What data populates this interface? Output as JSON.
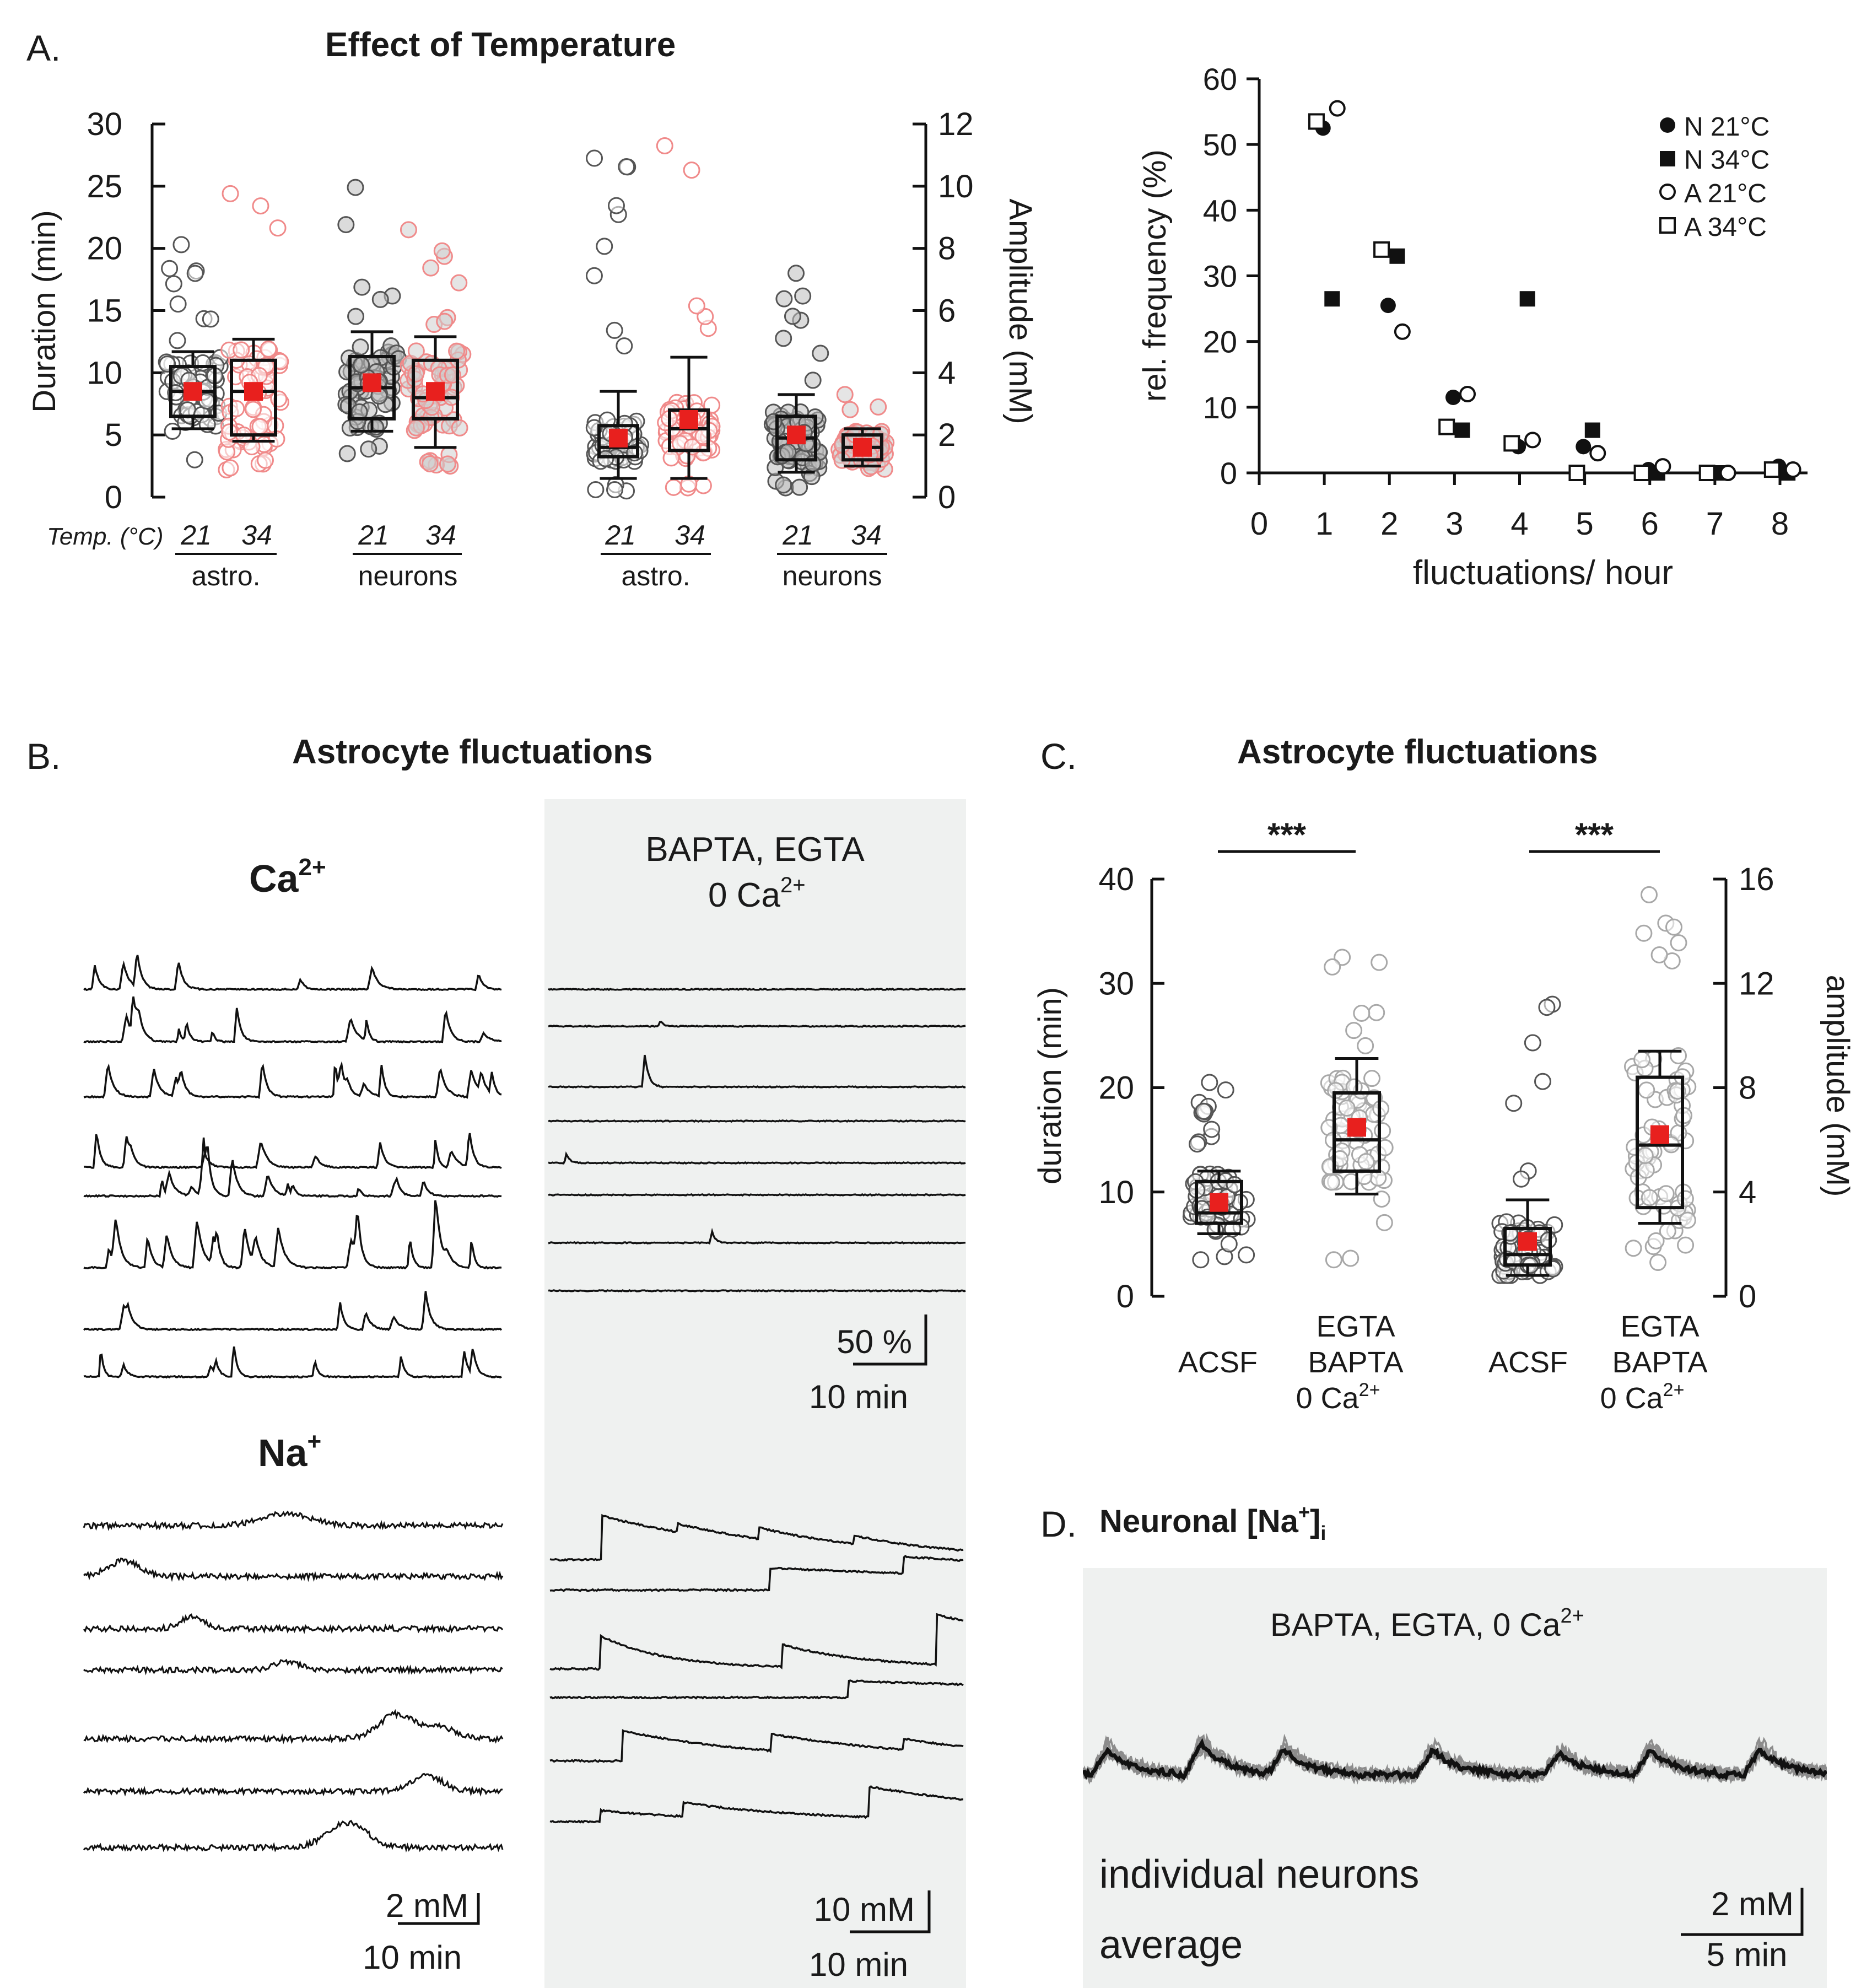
{
  "panels": {
    "A": {
      "letter": "A.",
      "title": "Effect of Temperature",
      "duration_label": "Duration (min)",
      "amplitude_label": "Amplitude (mM)",
      "temp_label": "Temp. (°C)",
      "group_labels": [
        "astro.",
        "neurons",
        "astro.",
        "neurons"
      ],
      "temps": [
        "21",
        "34",
        "21",
        "34",
        "21",
        "34",
        "21",
        "34"
      ],
      "duration_ticks": [
        "0",
        "5",
        "10",
        "15",
        "20",
        "25",
        "30"
      ],
      "amplitude_ticks": [
        "0",
        "2",
        "4",
        "6",
        "8",
        "10",
        "12"
      ]
    },
    "A2": {
      "ylabel": "rel. frequency (%)",
      "xlabel": "fluctuations/ hour",
      "yticks": [
        "0",
        "10",
        "20",
        "30",
        "40",
        "50",
        "60"
      ],
      "xticks": [
        "0",
        "1",
        "2",
        "3",
        "4",
        "5",
        "6",
        "7",
        "8"
      ],
      "legend": [
        "N 21°C",
        "N 34°C",
        "A 21°C",
        "A 34°C"
      ]
    },
    "B": {
      "letter": "B.",
      "title": "Astrocyte fluctuations",
      "ca_label": "Ca",
      "ca_sup": "2+",
      "na_label": "Na",
      "na_sup": "+",
      "bapta_line1": "BAPTA, EGTA",
      "bapta_line2": "0 Ca",
      "bapta_sup": "2+",
      "scale_ca_y": "50 %",
      "scale_ca_x": "10 min",
      "scale_na_left_y": "2 mM",
      "scale_na_left_x": "10 min",
      "scale_na_right_y": "10 mM",
      "scale_na_right_x": "10 min"
    },
    "C": {
      "letter": "C.",
      "title": "Astrocyte fluctuations",
      "ylabel_left": "duration (min)",
      "ylabel_right": "amplitude (mM)",
      "yticks_left": [
        "0",
        "10",
        "20",
        "30",
        "40"
      ],
      "yticks_right": [
        "0",
        "4",
        "8",
        "12",
        "16"
      ],
      "sig": [
        "***",
        "***"
      ],
      "acsf": "ACSF",
      "egta_line1": "EGTA",
      "egta_line2": "BAPTA",
      "egta_line3": "0 Ca",
      "egta_sup": "2+"
    },
    "D": {
      "letter": "D.",
      "title": "Neuronal [Na",
      "title_sup": "+",
      "title_end": "]",
      "title_sub": "i",
      "condition": "BAPTA, EGTA, 0 Ca",
      "condition_sup": "2+",
      "legend_individual": "individual neurons",
      "legend_average": "average",
      "scale_y": "2 mM",
      "scale_x": "5 min"
    }
  },
  "colors": {
    "red": "#e8201e",
    "pink": "#f08a8a",
    "grey": "#9a9a9a",
    "shade": "#eff1f0",
    "trace": "#111111",
    "individual": "#8c8c8c"
  },
  "chart_data": [
    {
      "type": "box",
      "title": "Effect of Temperature - Duration",
      "ylabel": "Duration (min)",
      "ylim": [
        0,
        30
      ],
      "groups": [
        {
          "name": "astro. 21",
          "whisker_low": 5.5,
          "q1": 6.5,
          "median": 8.5,
          "q3": 10.5,
          "whisker_high": 11.7,
          "mean": 8.5,
          "min": 3,
          "max": 20.3
        },
        {
          "name": "astro. 34",
          "whisker_low": 4.5,
          "q1": 5.0,
          "median": 8.5,
          "q3": 11.0,
          "whisker_high": 12.7,
          "mean": 8.5,
          "min": 2.2,
          "max": 24.4
        },
        {
          "name": "neurons 21",
          "whisker_low": 5.3,
          "q1": 6.3,
          "median": 8.8,
          "q3": 11.3,
          "whisker_high": 13.3,
          "mean": 9.2,
          "min": 3.5,
          "max": 24.9
        },
        {
          "name": "neurons 34",
          "whisker_low": 4.0,
          "q1": 6.3,
          "median": 8.0,
          "q3": 11.0,
          "whisker_high": 12.9,
          "mean": 8.5,
          "min": 2.5,
          "max": 21.5
        }
      ]
    },
    {
      "type": "box",
      "title": "Effect of Temperature - Amplitude",
      "ylabel": "Amplitude (mM)",
      "ylim": [
        0,
        12
      ],
      "groups": [
        {
          "name": "astro. 21",
          "whisker_low": 0.6,
          "q1": 1.3,
          "median": 1.6,
          "q3": 2.3,
          "whisker_high": 3.4,
          "mean": 1.9,
          "min": 0.2,
          "max": 10.9
        },
        {
          "name": "astro. 34",
          "whisker_low": 0.6,
          "q1": 1.5,
          "median": 2.2,
          "q3": 2.8,
          "whisker_high": 4.5,
          "mean": 2.5,
          "min": 0.3,
          "max": 11.3
        },
        {
          "name": "neurons 21",
          "whisker_low": 0.8,
          "q1": 1.2,
          "median": 1.9,
          "q3": 2.6,
          "whisker_high": 3.3,
          "mean": 2.0,
          "min": 0.3,
          "max": 7.2
        },
        {
          "name": "neurons 34",
          "whisker_low": 1.0,
          "q1": 1.2,
          "median": 1.6,
          "q3": 2.0,
          "whisker_high": 2.2,
          "mean": 1.6,
          "min": 0.9,
          "max": 3.3
        }
      ]
    },
    {
      "type": "scatter",
      "xlabel": "fluctuations/ hour",
      "ylabel": "rel. frequency (%)",
      "xlim": [
        0,
        8
      ],
      "ylim": [
        0,
        60
      ],
      "series": [
        {
          "name": "N 21°C",
          "marker": "filled-circle",
          "x": [
            1,
            2,
            3,
            4,
            5,
            6,
            7,
            8
          ],
          "y": [
            52.5,
            25.5,
            11.5,
            4,
            4,
            0.5,
            0,
            1
          ]
        },
        {
          "name": "N 34°C",
          "marker": "filled-square",
          "x": [
            1,
            2,
            3,
            4,
            5,
            6,
            7,
            8
          ],
          "y": [
            26.5,
            33,
            6.5,
            26.5,
            6.5,
            0,
            0,
            0
          ]
        },
        {
          "name": "A 21°C",
          "marker": "open-circle",
          "x": [
            1,
            2,
            3,
            4,
            5,
            6,
            7,
            8
          ],
          "y": [
            55.5,
            21.5,
            12,
            5,
            3,
            1,
            0,
            0.5
          ]
        },
        {
          "name": "A 34°C",
          "marker": "open-square",
          "x": [
            1,
            2,
            3,
            4,
            5,
            6,
            7,
            8
          ],
          "y": [
            53.5,
            34,
            7,
            4.5,
            0,
            0,
            0,
            0.5
          ]
        }
      ]
    },
    {
      "type": "box",
      "title": "Astrocyte fluctuations",
      "groups": [
        {
          "name": "ACSF duration",
          "axis": "duration (min)",
          "whisker_low": 6,
          "q1": 7,
          "median": 8,
          "q3": 11,
          "whisker_high": 12,
          "mean": 9,
          "min": 3.5,
          "max": 20.5
        },
        {
          "name": "EGTA BAPTA 0 Ca2+ duration",
          "axis": "duration (min)",
          "whisker_low": 9.8,
          "q1": 12,
          "median": 15,
          "q3": 19.5,
          "whisker_high": 22.8,
          "mean": 16.2,
          "min": 3.5,
          "max": 32.5
        },
        {
          "name": "ACSF amplitude",
          "axis": "amplitude (mM)",
          "whisker_low": 0.8,
          "q1": 1.2,
          "median": 1.6,
          "q3": 2.6,
          "whisker_high": 3.7,
          "mean": 2.1,
          "min": 0.8,
          "max": 11.2
        },
        {
          "name": "EGTA BAPTA 0 Ca2+ amplitude",
          "axis": "amplitude (mM)",
          "whisker_low": 2.8,
          "q1": 3.4,
          "median": 5.8,
          "q3": 8.4,
          "whisker_high": 9.4,
          "mean": 6.2,
          "min": 1.3,
          "max": 15.4
        }
      ],
      "ylim_left": [
        0,
        40
      ],
      "ylim_right": [
        0,
        16
      ]
    }
  ]
}
